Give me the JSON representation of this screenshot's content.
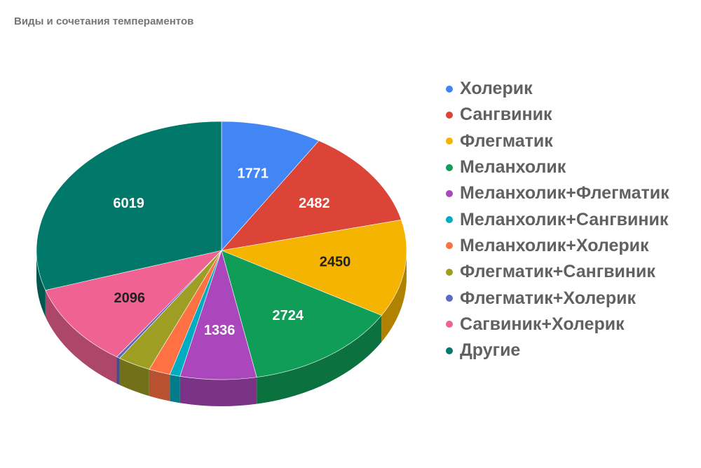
{
  "chart_data": {
    "type": "pie",
    "title": "Виды и сочетания темпераментов",
    "legend_position": "right",
    "three_d": true,
    "slices": [
      {
        "label": "Холерик",
        "value": 1771,
        "value_label": "1771",
        "color": "#4285F4",
        "label_color": "#ffffff"
      },
      {
        "label": "Сангвиник",
        "value": 2482,
        "value_label": "2482",
        "color": "#DB4437",
        "label_color": "#ffffff"
      },
      {
        "label": "Флегматик",
        "value": 2450,
        "value_label": "2450",
        "color": "#F4B400",
        "label_color": "#212121"
      },
      {
        "label": "Меланхолик",
        "value": 2724,
        "value_label": "2724",
        "color": "#0F9D58",
        "label_color": "#ffffff"
      },
      {
        "label": "Меланхолик+Флегматик",
        "value": 1336,
        "value_label": "1336",
        "color": "#AB47BC",
        "label_color": "#ffffff"
      },
      {
        "label": "Меланхолик+Сангвиник",
        "value": 180,
        "value_label": "",
        "color": "#00ACC1",
        "label_color": "#ffffff"
      },
      {
        "label": "Меланхолик+Холерик",
        "value": 380,
        "value_label": "",
        "color": "#FF7043",
        "label_color": "#ffffff"
      },
      {
        "label": "Флегматик+Сангвиник",
        "value": 580,
        "value_label": "",
        "color": "#9E9D24",
        "label_color": "#ffffff"
      },
      {
        "label": "Флегматик+Холерик",
        "value": 60,
        "value_label": "",
        "color": "#5C6BC0",
        "label_color": "#ffffff"
      },
      {
        "label": "Сагвиник+Холерик",
        "value": 2096,
        "value_label": "2096",
        "color": "#F06292",
        "label_color": "#212121"
      },
      {
        "label": "Другие",
        "value": 6019,
        "value_label": "6019",
        "color": "#00796B",
        "label_color": "#ffffff"
      }
    ]
  }
}
